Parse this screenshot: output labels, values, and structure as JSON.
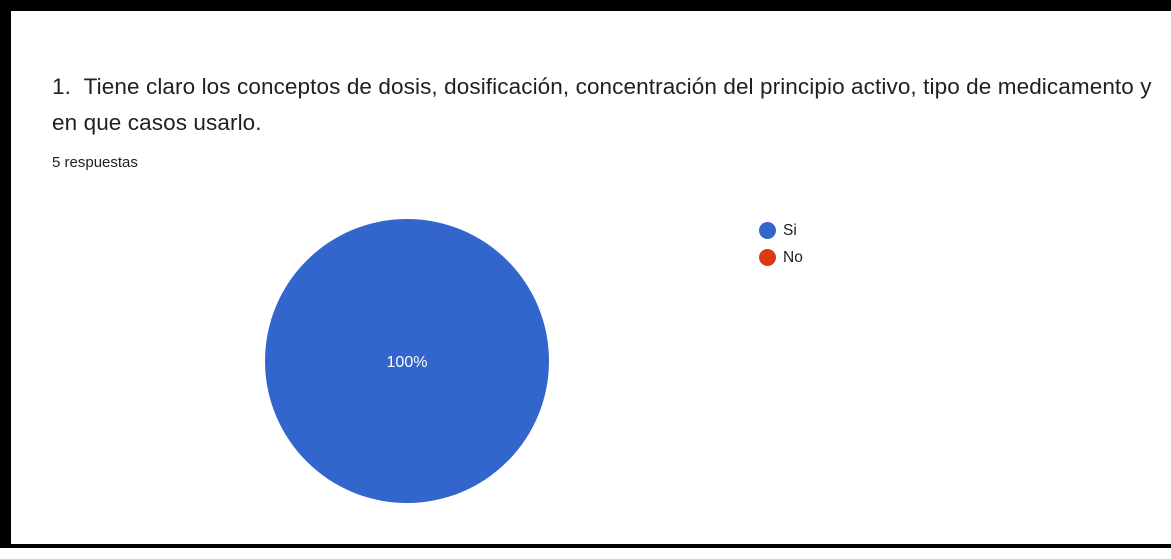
{
  "question": {
    "title": "1.  Tiene claro los conceptos de dosis, dosificación, concentración del principio activo, tipo de medicamento y en que casos usarlo.",
    "response_count": "5 respuestas"
  },
  "chart_data": {
    "type": "pie",
    "categories": [
      "Si",
      "No"
    ],
    "values": [
      100,
      0
    ],
    "colors": [
      "#3366cc",
      "#dc3912"
    ],
    "data_labels": [
      "100%",
      ""
    ],
    "legend": "right"
  }
}
